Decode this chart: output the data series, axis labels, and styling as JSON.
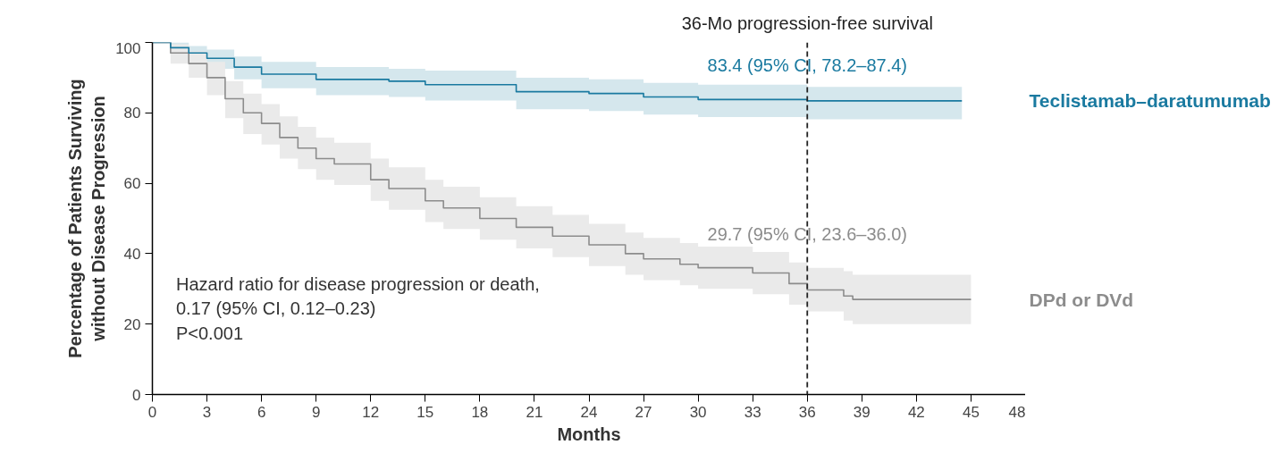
{
  "chart_data": {
    "type": "step",
    "xlabel": "Months",
    "ylabel": "Percentage of Patients Surviving\nwithout Disease Progression",
    "xlim": [
      0,
      48
    ],
    "xticks": [
      0,
      3,
      6,
      9,
      12,
      15,
      18,
      21,
      24,
      27,
      30,
      33,
      36,
      39,
      42,
      45,
      48
    ],
    "ylim": [
      0,
      100
    ],
    "yticks": [
      0,
      20,
      40,
      60,
      80,
      100
    ],
    "grid": false,
    "legend": false,
    "series": [
      {
        "name": "Teclistamab–daratumumab",
        "color": "#1a7aa0",
        "x": [
          0,
          1,
          2,
          3,
          4.5,
          6,
          9,
          13,
          15,
          20,
          24,
          27,
          30,
          36,
          44.5
        ],
        "values": [
          100,
          98.5,
          97,
          95.5,
          93,
          91,
          89.5,
          89,
          88,
          86,
          85.5,
          84.5,
          83.8,
          83.4,
          83.4
        ],
        "lower": [
          100,
          96.5,
          94.5,
          92.5,
          89.5,
          87,
          85,
          84.5,
          83.5,
          81,
          80.5,
          79.5,
          78.8,
          78.2,
          78.2
        ],
        "upper": [
          100,
          100,
          99,
          98,
          96,
          94.5,
          93,
          92.5,
          92,
          90,
          89.5,
          88.5,
          88,
          87.4,
          87.4
        ]
      },
      {
        "name": "DPd or DVd",
        "color": "#8c8c8c",
        "x": [
          0,
          1,
          2,
          3,
          4,
          5,
          6,
          7,
          8,
          9,
          10,
          12,
          13,
          15,
          16,
          18,
          20,
          22,
          24,
          26,
          27,
          29,
          30,
          33,
          35,
          36,
          38,
          38.5,
          45
        ],
        "values": [
          100,
          97,
          94,
          90,
          84,
          80,
          77,
          73,
          70,
          67,
          65.5,
          61,
          58.5,
          55,
          53,
          50,
          47.5,
          45,
          42.5,
          40,
          38.5,
          37,
          36,
          34.5,
          31.5,
          29.7,
          28,
          27,
          27
        ],
        "lower": [
          100,
          94,
          90,
          85,
          78.5,
          74,
          71,
          67,
          64,
          61,
          59.5,
          55,
          52.5,
          49,
          47,
          44,
          41.5,
          39,
          36.5,
          34,
          32.5,
          31,
          30,
          28.5,
          25.5,
          23.6,
          21,
          20,
          20
        ],
        "upper": [
          100,
          99.5,
          97.5,
          94.5,
          89,
          85.5,
          82.5,
          79,
          76,
          73,
          71.5,
          67,
          64.5,
          61,
          59,
          56,
          53.5,
          51,
          48.5,
          46,
          44.5,
          43,
          42,
          40.5,
          37.5,
          36,
          35,
          34,
          34
        ]
      }
    ],
    "ref_lines": [
      {
        "axis": "x",
        "value": 36,
        "label": "36-Mo progression-free survival",
        "color": "#222222",
        "line_style": "dashed"
      }
    ],
    "annotations": [
      {
        "text": "83.4 (95% CI, 78.2–87.4)",
        "x": 36,
        "y": 83.4
      },
      {
        "text": "29.7 (95% CI, 23.6–36.0)",
        "x": 36,
        "y": 29.7
      },
      "Hazard ratio for disease progression or death,\n    0.17 (95% CI, 0.12–0.23)\nP<0.001"
    ]
  }
}
